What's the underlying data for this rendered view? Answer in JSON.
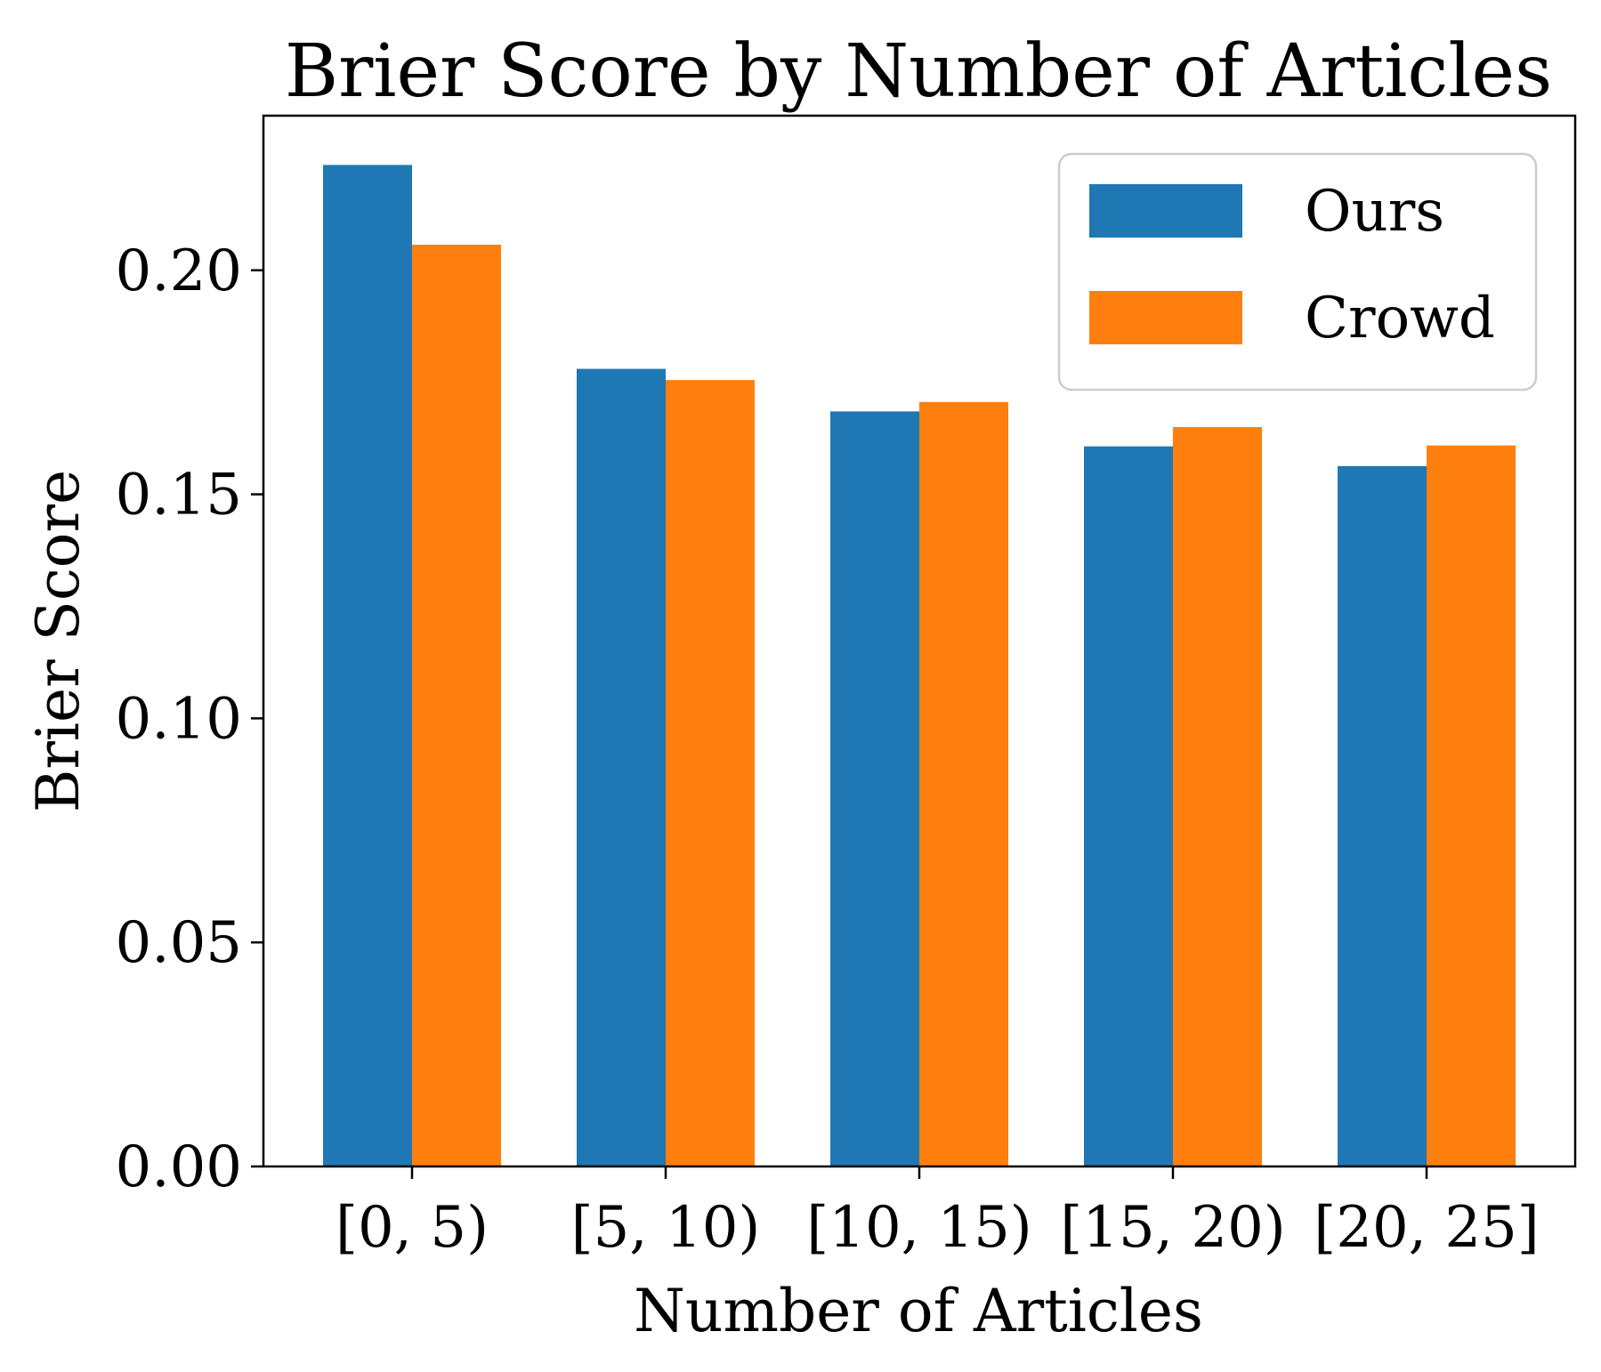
{
  "chart_data": {
    "type": "bar",
    "title": "Brier Score by Number of Articles",
    "xlabel": "Number of Articles",
    "ylabel": "Brier Score",
    "categories": [
      "[0, 5)",
      "[5, 10)",
      "[10, 15)",
      "[15, 20)",
      "[20, 25]"
    ],
    "series": [
      {
        "name": "Ours",
        "color": "#1f77b4",
        "values": [
          0.2235,
          0.178,
          0.1685,
          0.1607,
          0.1563
        ]
      },
      {
        "name": "Crowd",
        "color": "#ff7f0e",
        "values": [
          0.2057,
          0.1755,
          0.1706,
          0.165,
          0.1609
        ]
      }
    ],
    "ylim": [
      0,
      0.2345
    ],
    "yticks": [
      0.0,
      0.05,
      0.1,
      0.15,
      0.2
    ],
    "ytick_labels": [
      "0.00",
      "0.05",
      "0.10",
      "0.15",
      "0.20"
    ],
    "grid": false,
    "legend_position": "top-right"
  }
}
